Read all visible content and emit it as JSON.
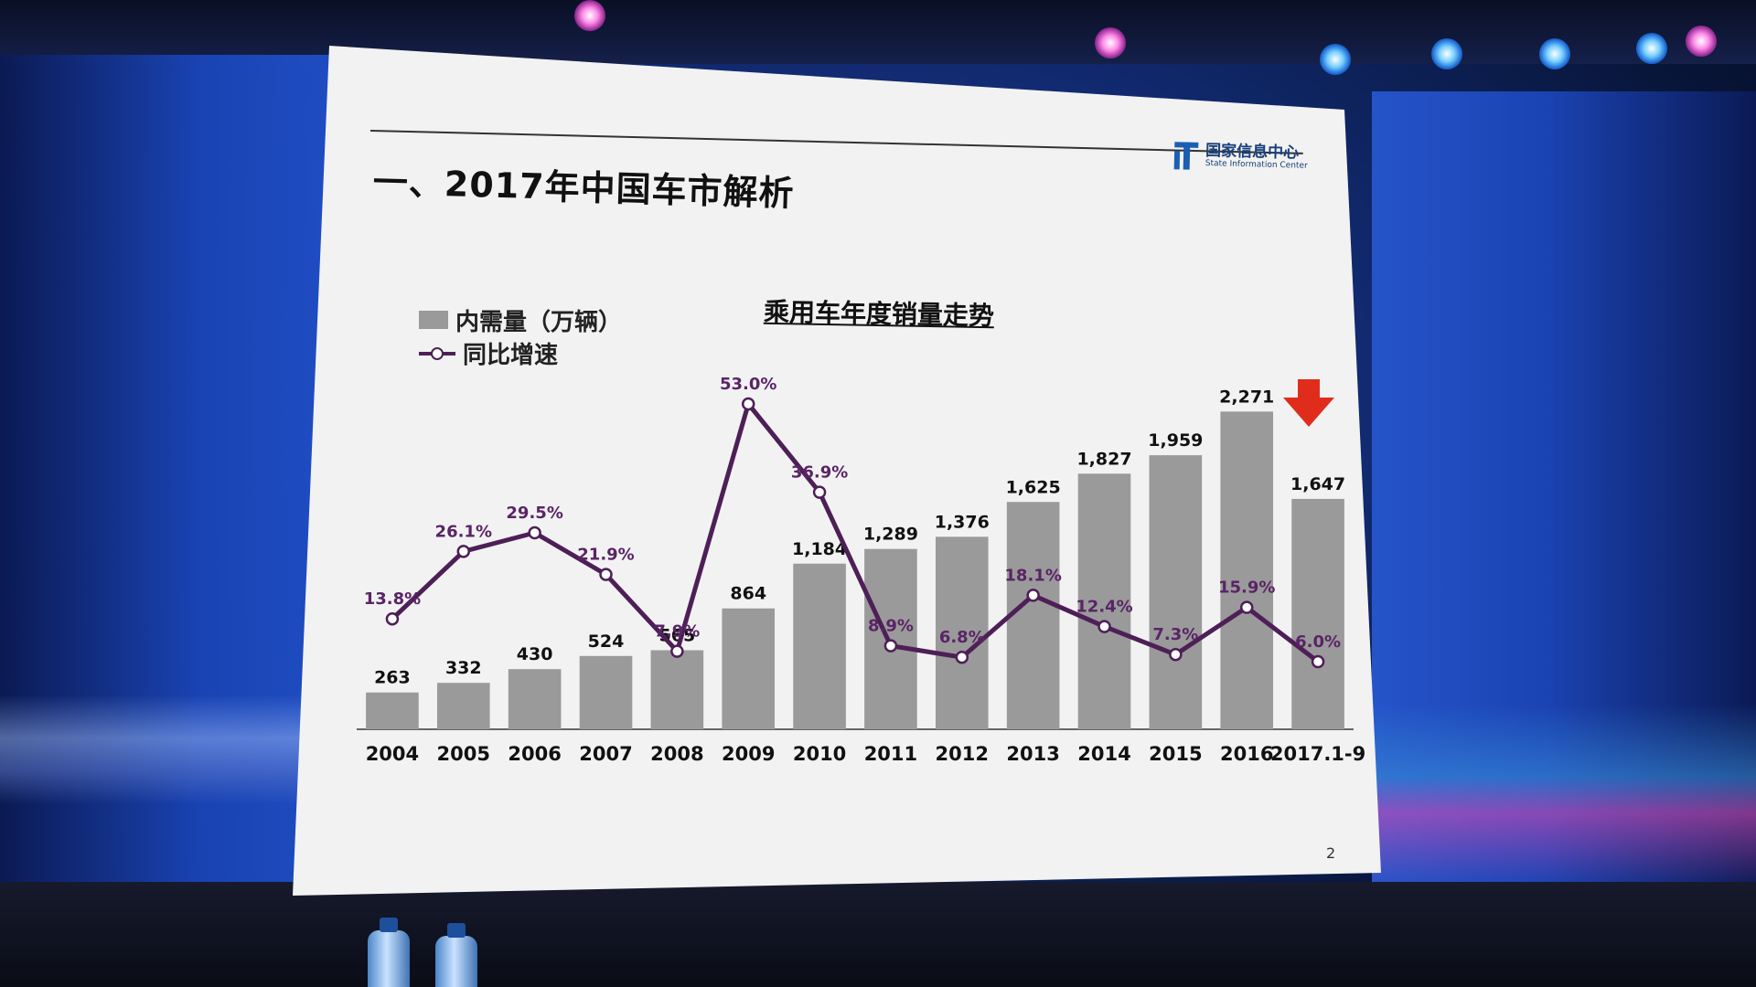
{
  "slide": {
    "title": "一、2017年中国车市解析",
    "org_name_cn": "国家信息中心",
    "org_name_en": "State Information Center",
    "page_number": "2"
  },
  "colors": {
    "bar": "#9a9a9a",
    "line": "#4e1f57",
    "pct_label": "#5a2466",
    "arrow": "#e02d1b"
  },
  "chart_data": {
    "type": "bar",
    "title": "乘用车年度销量走势",
    "xlabel": "",
    "ylabel": "",
    "legend_position": "top-left",
    "grid": false,
    "categories": [
      "2004",
      "2005",
      "2006",
      "2007",
      "2008",
      "2009",
      "2010",
      "2011",
      "2012",
      "2013",
      "2014",
      "2015",
      "2016",
      "2017.1-9"
    ],
    "series": [
      {
        "name": "内需量（万辆）",
        "type": "bar",
        "values": [
          263,
          332,
          430,
          524,
          565,
          864,
          1184,
          1289,
          1376,
          1625,
          1827,
          1959,
          2271,
          1647
        ],
        "labels": [
          "263",
          "332",
          "430",
          "524",
          "565",
          "864",
          "1,184",
          "1,289",
          "1,376",
          "1,625",
          "1,827",
          "1,959",
          "2,271",
          "1,647"
        ]
      },
      {
        "name": "同比增速",
        "type": "line",
        "values": [
          13.8,
          26.1,
          29.5,
          21.9,
          7.9,
          53.0,
          36.9,
          8.9,
          6.8,
          18.1,
          12.4,
          7.3,
          15.9,
          6.0
        ],
        "labels": [
          "13.8%",
          "26.1%",
          "29.5%",
          "21.9%",
          "7.9%",
          "53.0%",
          "36.9%",
          "8.9%",
          "6.8%",
          "18.1%",
          "12.4%",
          "7.3%",
          "15.9%",
          "6.0%"
        ]
      }
    ]
  }
}
